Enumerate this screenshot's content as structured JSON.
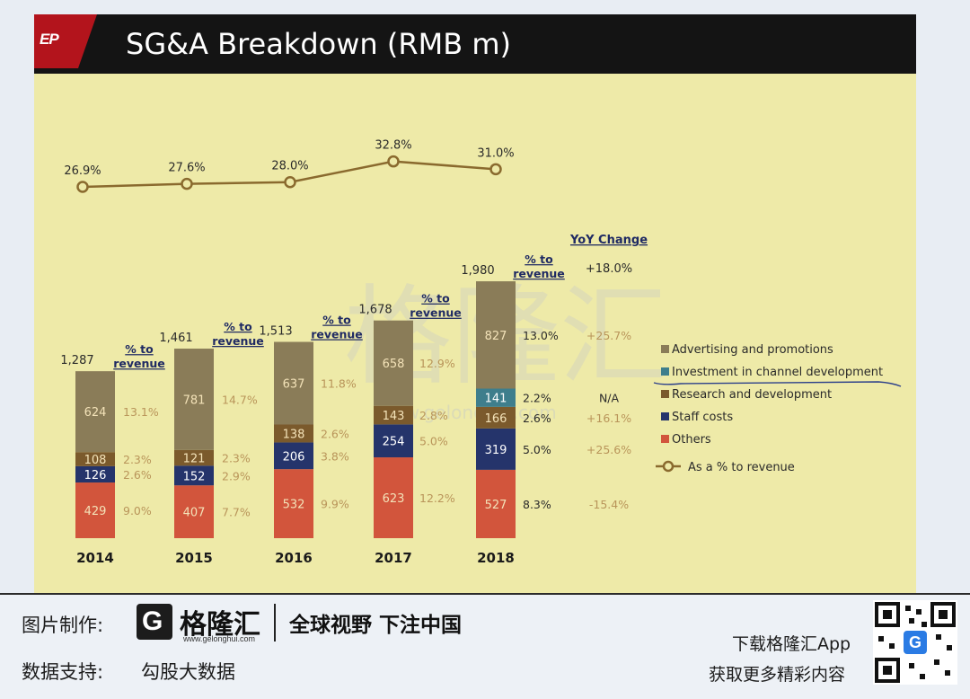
{
  "slide": {
    "logo_text": "EP",
    "title": "SG&A Breakdown (RMB m)",
    "watermark": "格隆汇",
    "watermark_url": "www.gelonghui.com",
    "pct_header": "% to revenue",
    "pct_header_line1": "% to",
    "pct_header_line2": "revenue",
    "yoy_header": "YoY Change"
  },
  "chart_data": {
    "type": "bar",
    "stacked": true,
    "categories": [
      "2014",
      "2015",
      "2016",
      "2017",
      "2018"
    ],
    "totals": [
      1287,
      1461,
      1513,
      1678,
      1980
    ],
    "totals_labels": [
      "1,287",
      "1,461",
      "1,513",
      "1,678",
      "1,980"
    ],
    "series": [
      {
        "name": "Others",
        "color": "#d2553c",
        "values": [
          429,
          407,
          532,
          623,
          527
        ],
        "pct": [
          "9.0%",
          "7.7%",
          "9.9%",
          "12.2%",
          "8.3%"
        ],
        "yoy": "-15.4%"
      },
      {
        "name": "Staff costs",
        "color": "#25346b",
        "values": [
          126,
          152,
          206,
          254,
          319
        ],
        "pct": [
          "2.6%",
          "2.9%",
          "3.8%",
          "5.0%",
          "5.0%"
        ],
        "yoy": "+25.6%"
      },
      {
        "name": "Research and development",
        "color": "#7b5a2c",
        "values": [
          108,
          121,
          138,
          143,
          166
        ],
        "pct": [
          "2.3%",
          "2.3%",
          "2.6%",
          "2.8%",
          "2.6%"
        ],
        "yoy": "+16.1%"
      },
      {
        "name": "Investment in channel development",
        "color": "#3e7e8c",
        "values": [
          null,
          null,
          null,
          null,
          141
        ],
        "pct": [
          "",
          "",
          "",
          "",
          "2.2%"
        ],
        "yoy": "N/A"
      },
      {
        "name": "Advertising and promotions",
        "color": "#8a7c58",
        "values": [
          624,
          781,
          637,
          658,
          827
        ],
        "pct": [
          "13.1%",
          "14.7%",
          "11.8%",
          "12.9%",
          "13.0%"
        ],
        "yoy": "+25.7%"
      }
    ],
    "line_series": {
      "name": "As a % to revenue",
      "values": [
        26.9,
        27.6,
        28.0,
        32.8,
        31.0
      ],
      "labels": [
        "26.9%",
        "27.6%",
        "28.0%",
        "32.8%",
        "31.0%"
      ],
      "color": "#8a6a2e"
    },
    "total_yoy": "+18.0%",
    "legend": [
      "Advertising and promotions",
      "Investment in channel development",
      "Research and development",
      "Staff costs",
      "Others",
      "As a % to revenue"
    ],
    "legend_position": "right",
    "grid": false
  },
  "footer": {
    "made_by_label": "图片制作:",
    "brand_name": "格隆汇",
    "brand_url": "www.gelonghui.com",
    "slogan": "全球视野 下注中国",
    "data_label": "数据支持:",
    "data_source": "勾股大数据",
    "download_line": "下载格隆汇App",
    "more_line": "获取更多精彩内容",
    "qr_glyph": "G",
    "brand_glyph": "G"
  }
}
